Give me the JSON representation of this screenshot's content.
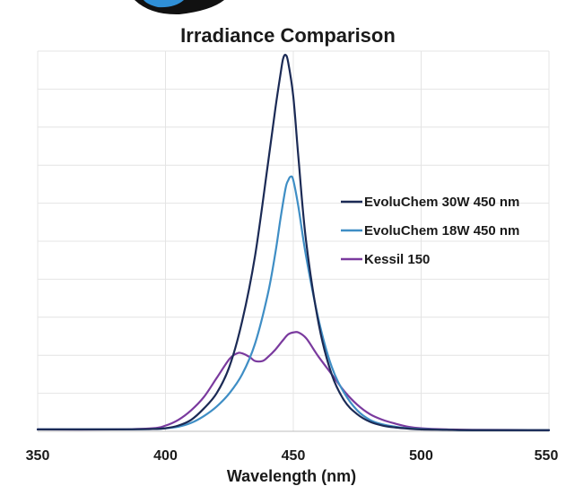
{
  "chart_data": {
    "type": "line",
    "title": "Irradiance Comparison",
    "xlabel": "Wavelength (nm)",
    "ylabel": "",
    "xlim": [
      350,
      550
    ],
    "ylim": [
      0,
      100
    ],
    "x_ticks": [
      350,
      400,
      450,
      500,
      550
    ],
    "x_tick_labels": [
      "350",
      "400",
      "450",
      "500",
      "550"
    ],
    "grid": true,
    "legend_position": "right",
    "series": [
      {
        "name": "EvoluChem 30W 450 nm",
        "color": "#1b2a55",
        "x": [
          350,
          380,
          395,
          400,
          405,
          410,
          415,
          420,
          425,
          430,
          435,
          440,
          443,
          445,
          446,
          447,
          448,
          450,
          452,
          455,
          460,
          465,
          470,
          475,
          480,
          485,
          490,
          495,
          500,
          510,
          520,
          550
        ],
        "y": [
          0.5,
          0.5,
          0.6,
          0.8,
          1.5,
          3,
          6,
          10,
          17,
          29,
          46,
          70,
          85,
          94,
          98,
          99,
          97,
          88,
          72,
          50,
          28,
          15,
          8,
          4.5,
          2.5,
          1.5,
          1,
          0.7,
          0.5,
          0.4,
          0.3,
          0.3
        ]
      },
      {
        "name": "EvoluChem 18W 450 nm",
        "color": "#3f8ec5",
        "x": [
          350,
          380,
          395,
          400,
          405,
          410,
          415,
          420,
          425,
          430,
          435,
          440,
          443,
          445,
          447,
          448,
          449,
          450,
          452,
          455,
          460,
          465,
          470,
          475,
          480,
          485,
          490,
          495,
          500,
          510,
          520,
          550
        ],
        "y": [
          0.5,
          0.5,
          0.6,
          0.8,
          1.2,
          2.2,
          4,
          6.5,
          10,
          15,
          23,
          36,
          47,
          56,
          64,
          66,
          67,
          66,
          59,
          46,
          29,
          17,
          10,
          5.5,
          3,
          1.8,
          1.2,
          0.8,
          0.6,
          0.4,
          0.3,
          0.3
        ]
      },
      {
        "name": "Kessil 150",
        "color": "#7a3a9e",
        "x": [
          350,
          380,
          395,
          400,
          405,
          410,
          415,
          420,
          425,
          428,
          430,
          433,
          435,
          438,
          440,
          443,
          446,
          448,
          450,
          452,
          455,
          458,
          460,
          465,
          470,
          475,
          480,
          485,
          490,
          495,
          500,
          510,
          520,
          550
        ],
        "y": [
          0.5,
          0.5,
          0.8,
          1.5,
          3,
          5.5,
          9,
          14,
          19,
          20.5,
          20.5,
          19.5,
          18.5,
          18.5,
          19.5,
          21.5,
          24,
          25.5,
          26,
          26,
          24.5,
          21.5,
          19.5,
          15,
          10.5,
          7,
          4.5,
          3,
          2,
          1.2,
          0.8,
          0.5,
          0.4,
          0.3
        ]
      }
    ]
  }
}
